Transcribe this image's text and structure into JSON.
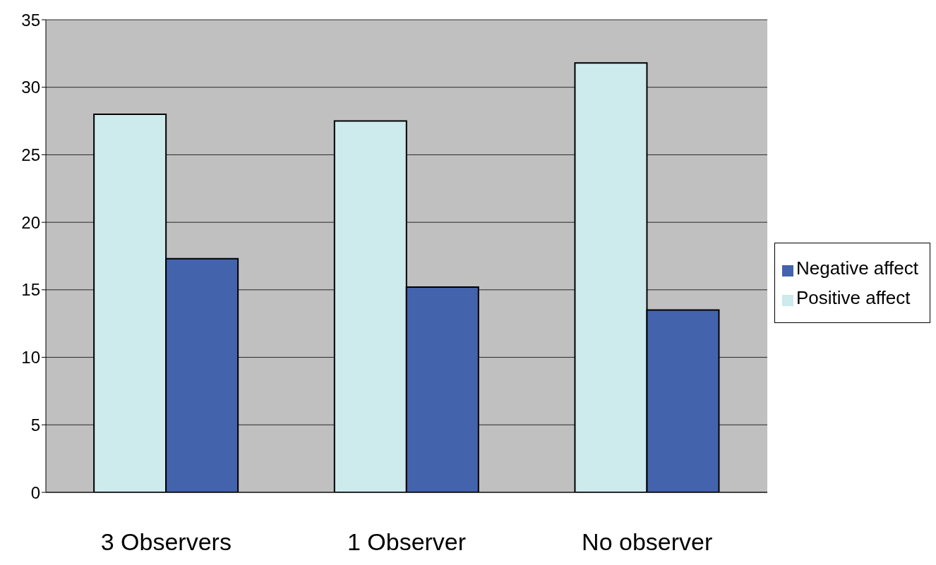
{
  "chart_data": {
    "type": "bar",
    "categories": [
      "3 Observers",
      "1 Observer",
      "No observer"
    ],
    "series": [
      {
        "name": "Positive affect",
        "color": "#cdeaed",
        "values": [
          28.0,
          27.5,
          31.8
        ]
      },
      {
        "name": "Negative affect",
        "color": "#4463ad",
        "values": [
          17.3,
          15.2,
          13.5
        ]
      }
    ],
    "ylim": [
      0,
      35
    ],
    "yticks": [
      0,
      5,
      10,
      15,
      20,
      25,
      30,
      35
    ],
    "grid": "y",
    "legend": "right"
  }
}
